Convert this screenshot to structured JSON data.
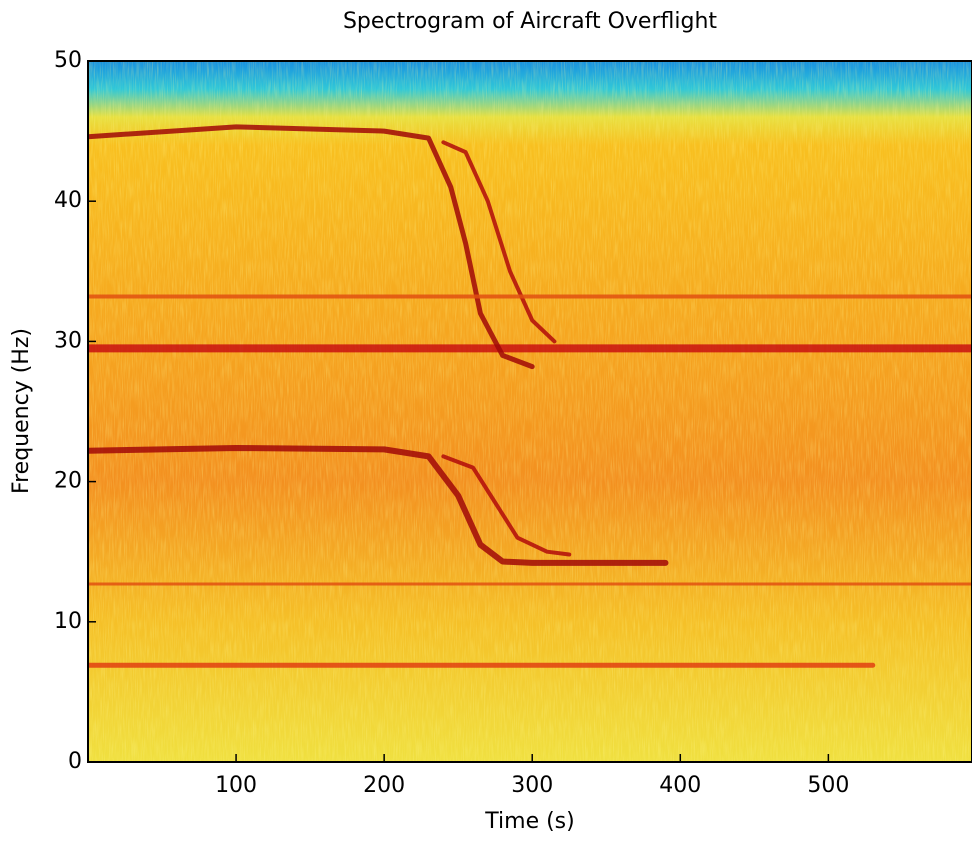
{
  "chart_data": {
    "type": "line",
    "title": "Spectrogram of Aircraft Overflight",
    "x_label": "Time (s)",
    "y_label": "Frequency (Hz)",
    "xlim": [
      0,
      597
    ],
    "ylim": [
      0,
      50
    ],
    "xticks": [
      100,
      200,
      300,
      400,
      500
    ],
    "yticks": [
      0,
      10,
      20,
      30,
      40,
      50
    ],
    "series": [
      {
        "color": "#c81010",
        "width": 8,
        "x": [
          0,
          597
        ],
        "values": [
          29.5,
          29.5
        ]
      },
      {
        "color": "#a00808",
        "width": 5,
        "x": [
          0,
          100,
          200,
          230,
          245,
          255,
          265,
          280,
          300
        ],
        "values": [
          44.6,
          45.3,
          45.0,
          44.5,
          41,
          37,
          32,
          29,
          28.2
        ]
      },
      {
        "color": "#b00a0a",
        "width": 4,
        "x": [
          240,
          255,
          270,
          285,
          300,
          315
        ],
        "values": [
          44.2,
          43.5,
          40,
          35,
          31.5,
          30
        ]
      },
      {
        "color": "#a00808",
        "width": 6,
        "x": [
          0,
          100,
          200,
          230,
          250,
          265,
          280,
          300,
          390
        ],
        "values": [
          22.2,
          22.4,
          22.3,
          21.8,
          19,
          15.5,
          14.3,
          14.2,
          14.2
        ]
      },
      {
        "color": "#b00a0a",
        "width": 4,
        "x": [
          240,
          260,
          275,
          290,
          310,
          325
        ],
        "values": [
          21.8,
          21,
          18.5,
          16,
          15,
          14.8
        ]
      },
      {
        "color": "#e05010",
        "width": 4,
        "x": [
          0,
          597
        ],
        "values": [
          33.2,
          33.2
        ]
      },
      {
        "color": "#e05010",
        "width": 3,
        "x": [
          0,
          597
        ],
        "values": [
          12.7,
          12.7
        ]
      },
      {
        "color": "#e04010",
        "width": 5,
        "x": [
          0,
          530
        ],
        "values": [
          6.9,
          6.9
        ]
      }
    ]
  }
}
